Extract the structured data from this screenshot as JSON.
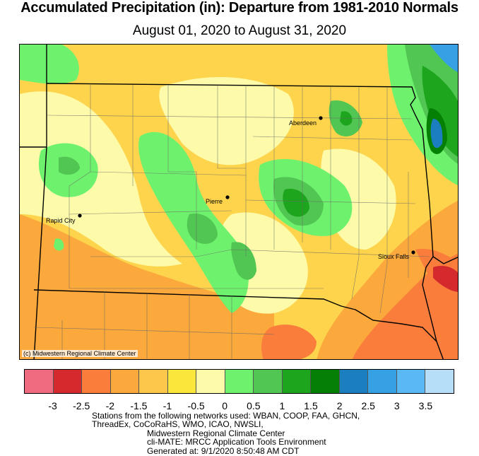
{
  "title": "Accumulated Precipitation (in): Departure from 1981-2010 Normals",
  "subtitle": "August 01, 2020 to August 31, 2020",
  "credit": "(c) Midwestern Regional Climate Center",
  "cities": [
    {
      "name": "Aberdeen"
    },
    {
      "name": "Pierre"
    },
    {
      "name": "Rapid City"
    },
    {
      "name": "Sioux Falls"
    }
  ],
  "legend": {
    "colors": [
      "#f06b80",
      "#d42a2d",
      "#fa7d3c",
      "#fba83c",
      "#fdc74c",
      "#fbe63c",
      "#fdfbaa",
      "#6ef26e",
      "#52c652",
      "#1ea51e",
      "#058005",
      "#1b7ebe",
      "#35a0e3",
      "#5ab8f5",
      "#b6def9"
    ],
    "tick_labels": [
      "-3",
      "-2.5",
      "-2",
      "-1.5",
      "-1",
      "-0.5",
      "0",
      "0.5",
      "1",
      "1.5",
      "2",
      "2.5",
      "3",
      "3.5"
    ]
  },
  "footer": {
    "line1": "Stations from the following networks used: WBAN, COOP, FAA, GHCN,",
    "line2": "ThreadEx, CoCoRaHS, WMO, ICAO, NWSLI,",
    "line3": "Midwestern Regional Climate Center",
    "line4": "cli-MATE: MRCC Application Tools Environment",
    "line5": "Generated at: 9/1/2020 8:50:48 AM CDT"
  }
}
